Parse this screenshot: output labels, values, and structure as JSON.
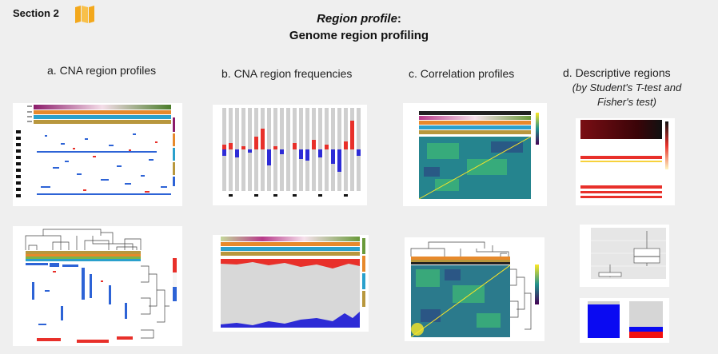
{
  "header": {
    "section_label": "Section 2",
    "section_icon": "folded-map-icon",
    "title_italic": "Region profile",
    "title_colon": ":",
    "title_line2": "Genome region profiling"
  },
  "columns": [
    {
      "label": "a. CNA region profiles"
    },
    {
      "label": "b. CNA region frequencies"
    },
    {
      "label": "c. Correlation profiles"
    },
    {
      "label": "d. Descriptive regions",
      "sub_line1": "(by Student's T-test and",
      "sub_line2": "Fisher's test)"
    }
  ],
  "colors": {
    "background": "#efefef",
    "gain": "#e8302a",
    "loss": "#2d63d6",
    "icon": "#f3a81c"
  }
}
